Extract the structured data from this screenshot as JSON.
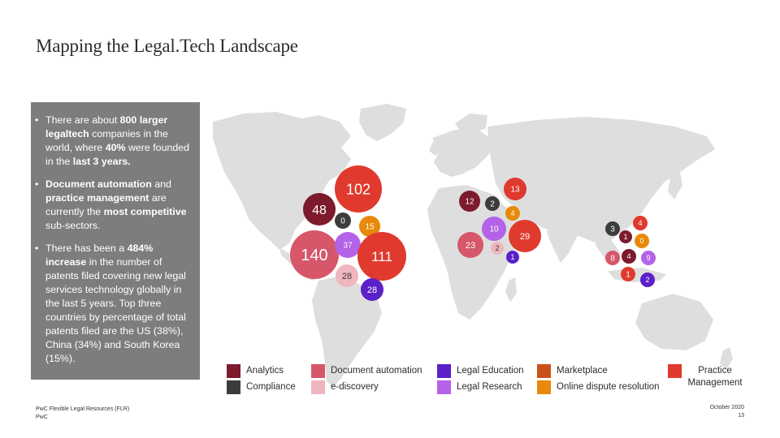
{
  "title": "Mapping the Legal.Tech Landscape",
  "bullets": [
    {
      "dot": "•",
      "runs": [
        {
          "t": "There are about ",
          "b": false
        },
        {
          "t": "800 larger legaltech",
          "b": true
        },
        {
          "t": " companies in the world, where ",
          "b": false
        },
        {
          "t": "40%",
          "b": true
        },
        {
          "t": "  were founded in the ",
          "b": false
        },
        {
          "t": "last 3 years.",
          "b": true
        }
      ]
    },
    {
      "dot": "•",
      "runs": [
        {
          "t": "Document automation",
          "b": true
        },
        {
          "t": " and ",
          "b": false
        },
        {
          "t": "practice management",
          "b": true
        },
        {
          "t": " are currently the ",
          "b": false
        },
        {
          "t": "most competitive",
          "b": true
        },
        {
          "t": " sub-sectors.",
          "b": false
        }
      ]
    },
    {
      "dot": "•",
      "runs": [
        {
          "t": "There has been a ",
          "b": false
        },
        {
          "t": "484% increase",
          "b": true
        },
        {
          "t": " in the number of patents filed covering new legal services technology globally in the last 5 years. Top three countries by percentage of total patents filed are the US (38%), China (34%) and South Korea (15%).",
          "b": false
        }
      ]
    }
  ],
  "colors": {
    "analytics": "#7d1a2c",
    "document_automation": "#d6566a",
    "legal_education": "#5b20c8",
    "marketplace": "#c9521c",
    "practice_management": "#e03a2e",
    "compliance": "#3c3c3c",
    "e_discovery": "#efb6c0",
    "legal_research": "#b463e8",
    "online_dispute_resolution": "#e8890a",
    "panel": "#7d7d7d",
    "map": "#dedede"
  },
  "bubbles": [
    {
      "value": "102",
      "cat": "practice_management",
      "label_color": "#ffffff"
    },
    {
      "value": "48",
      "cat": "analytics",
      "label_color": "#ffffff"
    },
    {
      "value": "0",
      "cat": "compliance",
      "label_color": "#ffffff"
    },
    {
      "value": "15",
      "cat": "online_dispute_resolution",
      "label_color": "#ffffff"
    },
    {
      "value": "140",
      "cat": "document_automation",
      "label_color": "#ffffff"
    },
    {
      "value": "37",
      "cat": "legal_research",
      "label_color": "#ffffff"
    },
    {
      "value": "111",
      "cat": "practice_management",
      "label_color": "#ffffff"
    },
    {
      "value": "28",
      "cat": "e_discovery",
      "label_color": "#3a3a3a"
    },
    {
      "value": "28",
      "cat": "legal_education",
      "label_color": "#ffffff"
    },
    {
      "value": "12",
      "cat": "analytics",
      "label_color": "#ffffff"
    },
    {
      "value": "2",
      "cat": "compliance",
      "label_color": "#ffffff"
    },
    {
      "value": "13",
      "cat": "practice_management",
      "label_color": "#ffffff"
    },
    {
      "value": "4",
      "cat": "online_dispute_resolution",
      "label_color": "#ffffff"
    },
    {
      "value": "10",
      "cat": "legal_research",
      "label_color": "#ffffff"
    },
    {
      "value": "29",
      "cat": "practice_management",
      "label_color": "#ffffff"
    },
    {
      "value": "23",
      "cat": "document_automation",
      "label_color": "#ffffff"
    },
    {
      "value": "2",
      "cat": "e_discovery",
      "label_color": "#3a3a3a"
    },
    {
      "value": "1",
      "cat": "legal_education",
      "label_color": "#ffffff"
    },
    {
      "value": "3",
      "cat": "compliance",
      "label_color": "#ffffff"
    },
    {
      "value": "4",
      "cat": "practice_management",
      "label_color": "#ffffff"
    },
    {
      "value": "1",
      "cat": "analytics",
      "label_color": "#ffffff"
    },
    {
      "value": "0",
      "cat": "online_dispute_resolution",
      "label_color": "#ffffff"
    },
    {
      "value": "8",
      "cat": "document_automation",
      "label_color": "#ffffff"
    },
    {
      "value": "4",
      "cat": "analytics",
      "label_color": "#ffffff"
    },
    {
      "value": "9",
      "cat": "legal_research",
      "label_color": "#ffffff"
    },
    {
      "value": "1",
      "cat": "practice_management",
      "label_color": "#ffffff"
    },
    {
      "value": "2",
      "cat": "legal_education",
      "label_color": "#ffffff"
    }
  ],
  "legend": [
    {
      "label": "Analytics",
      "cat": "analytics"
    },
    {
      "label": "Document automation",
      "cat": "document_automation"
    },
    {
      "label": "Legal Education",
      "cat": "legal_education"
    },
    {
      "label": "Marketplace",
      "cat": "marketplace"
    },
    {
      "label": "Practice Management",
      "cat": "practice_management"
    },
    {
      "label": "Compliance",
      "cat": "compliance"
    },
    {
      "label": "e-discovery",
      "cat": "e_discovery"
    },
    {
      "label": "Legal Research",
      "cat": "legal_research"
    },
    {
      "label": "Online dispute resolution",
      "cat": "online_dispute_resolution"
    }
  ],
  "footer": {
    "left_line1": "PwC Flexible Legal Resources (FLR)",
    "left_line2": "PwC",
    "right_line1": "October 2020",
    "right_line2": "13"
  }
}
